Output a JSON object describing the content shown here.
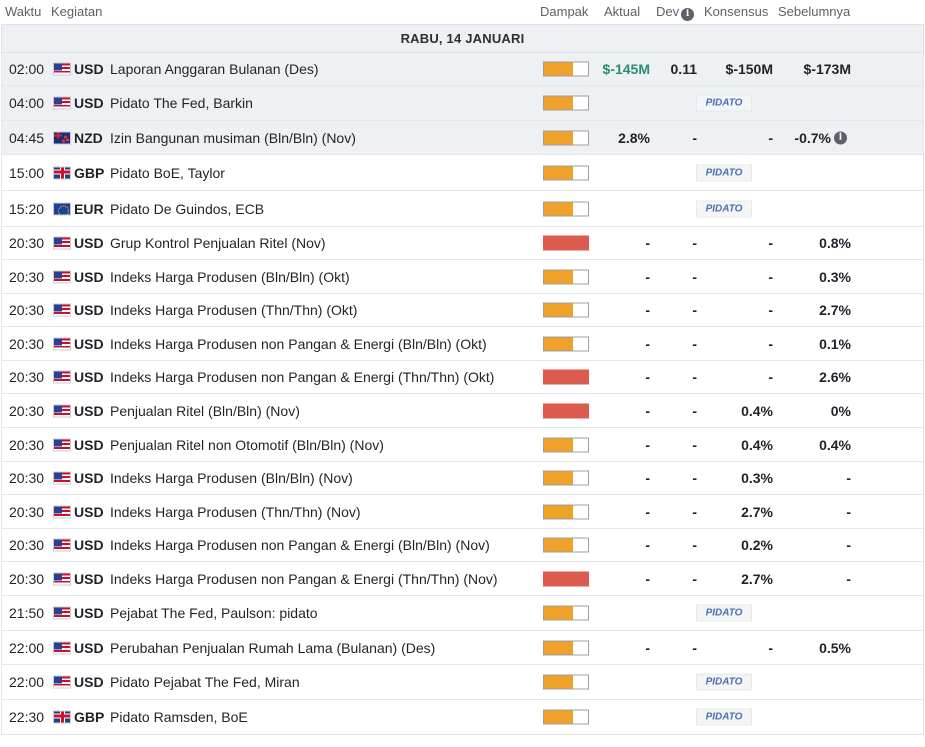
{
  "header": {
    "waktu": "Waktu",
    "kegiatan": "Kegiatan",
    "dampak": "Dampak",
    "aktual": "Aktual",
    "dev": "Dev",
    "konsensus": "Konsensus",
    "sebelumnya": "Sebelumnya"
  },
  "date_label": "RABU, 14 JANUARI",
  "colors": {
    "impact_medium": "#f0a12a",
    "impact_high": "#dd5a4f",
    "positive": "#2a8f6a",
    "pidato_text": "#4b6eb4",
    "highlight_row": "#eef0f3"
  },
  "rows": [
    {
      "time": "02:00",
      "flag": "us-flag-icon",
      "currency": "USD",
      "event": "Laporan Anggaran Bulanan (Des)",
      "impact": "medium",
      "actual": "$-145M",
      "dev": "0.11",
      "consensus": "$-150M",
      "previous": "$-173M",
      "highlight": true,
      "actual_color": "green"
    },
    {
      "time": "04:00",
      "flag": "us-flag-icon",
      "currency": "USD",
      "event": "Pidato The Fed, Barkin",
      "impact": "medium",
      "pidato": "PIDATO",
      "highlight": true
    },
    {
      "time": "04:45",
      "flag": "nz-flag-icon",
      "currency": "NZD",
      "event": "Izin Bangunan musiman (Bln/Bln) (Nov)",
      "impact": "medium",
      "actual": "2.8%",
      "dev": "-",
      "consensus": "-",
      "previous": "-0.7%",
      "highlight": true,
      "previous_info": true
    },
    {
      "time": "15:00",
      "flag": "gb-flag-icon",
      "currency": "GBP",
      "event": "Pidato BoE, Taylor",
      "impact": "medium",
      "pidato": "PIDATO"
    },
    {
      "time": "15:20",
      "flag": "eu-flag-icon",
      "currency": "EUR",
      "event": "Pidato De Guindos, ECB",
      "impact": "medium",
      "pidato": "PIDATO"
    },
    {
      "time": "20:30",
      "flag": "us-flag-icon",
      "currency": "USD",
      "event": "Grup Kontrol Penjualan Ritel (Nov)",
      "impact": "high",
      "actual": "-",
      "dev": "-",
      "consensus": "-",
      "previous": "0.8%"
    },
    {
      "time": "20:30",
      "flag": "us-flag-icon",
      "currency": "USD",
      "event": "Indeks Harga Produsen (Bln/Bln) (Okt)",
      "impact": "medium",
      "actual": "-",
      "dev": "-",
      "consensus": "-",
      "previous": "0.3%"
    },
    {
      "time": "20:30",
      "flag": "us-flag-icon",
      "currency": "USD",
      "event": "Indeks Harga Produsen (Thn/Thn) (Okt)",
      "impact": "medium",
      "actual": "-",
      "dev": "-",
      "consensus": "-",
      "previous": "2.7%"
    },
    {
      "time": "20:30",
      "flag": "us-flag-icon",
      "currency": "USD",
      "event": "Indeks Harga Produsen non Pangan & Energi (Bln/Bln) (Okt)",
      "impact": "medium",
      "actual": "-",
      "dev": "-",
      "consensus": "-",
      "previous": "0.1%"
    },
    {
      "time": "20:30",
      "flag": "us-flag-icon",
      "currency": "USD",
      "event": "Indeks Harga Produsen non Pangan & Energi (Thn/Thn) (Okt)",
      "impact": "high",
      "actual": "-",
      "dev": "-",
      "consensus": "-",
      "previous": "2.6%"
    },
    {
      "time": "20:30",
      "flag": "us-flag-icon",
      "currency": "USD",
      "event": "Penjualan Ritel (Bln/Bln) (Nov)",
      "impact": "high",
      "actual": "-",
      "dev": "-",
      "consensus": "0.4%",
      "previous": "0%"
    },
    {
      "time": "20:30",
      "flag": "us-flag-icon",
      "currency": "USD",
      "event": "Penjualan Ritel non Otomotif (Bln/Bln) (Nov)",
      "impact": "medium",
      "actual": "-",
      "dev": "-",
      "consensus": "0.4%",
      "previous": "0.4%"
    },
    {
      "time": "20:30",
      "flag": "us-flag-icon",
      "currency": "USD",
      "event": "Indeks Harga Produsen (Bln/Bln) (Nov)",
      "impact": "medium",
      "actual": "-",
      "dev": "-",
      "consensus": "0.3%",
      "previous": "-"
    },
    {
      "time": "20:30",
      "flag": "us-flag-icon",
      "currency": "USD",
      "event": "Indeks Harga Produsen (Thn/Thn) (Nov)",
      "impact": "medium",
      "actual": "-",
      "dev": "-",
      "consensus": "2.7%",
      "previous": "-"
    },
    {
      "time": "20:30",
      "flag": "us-flag-icon",
      "currency": "USD",
      "event": "Indeks Harga Produsen non Pangan & Energi (Bln/Bln) (Nov)",
      "impact": "medium",
      "actual": "-",
      "dev": "-",
      "consensus": "0.2%",
      "previous": "-"
    },
    {
      "time": "20:30",
      "flag": "us-flag-icon",
      "currency": "USD",
      "event": "Indeks Harga Produsen non Pangan & Energi (Thn/Thn) (Nov)",
      "impact": "high",
      "actual": "-",
      "dev": "-",
      "consensus": "2.7%",
      "previous": "-"
    },
    {
      "time": "21:50",
      "flag": "us-flag-icon",
      "currency": "USD",
      "event": "Pejabat The Fed, Paulson: pidato",
      "impact": "medium",
      "pidato": "PIDATO"
    },
    {
      "time": "22:00",
      "flag": "us-flag-icon",
      "currency": "USD",
      "event": "Perubahan Penjualan Rumah Lama (Bulanan) (Des)",
      "impact": "medium",
      "actual": "-",
      "dev": "-",
      "consensus": "-",
      "previous": "0.5%"
    },
    {
      "time": "22:00",
      "flag": "us-flag-icon",
      "currency": "USD",
      "event": "Pidato Pejabat The Fed, Miran",
      "impact": "medium",
      "pidato": "PIDATO"
    },
    {
      "time": "22:30",
      "flag": "gb-flag-icon",
      "currency": "GBP",
      "event": "Pidato Ramsden, BoE",
      "impact": "medium",
      "pidato": "PIDATO"
    }
  ]
}
